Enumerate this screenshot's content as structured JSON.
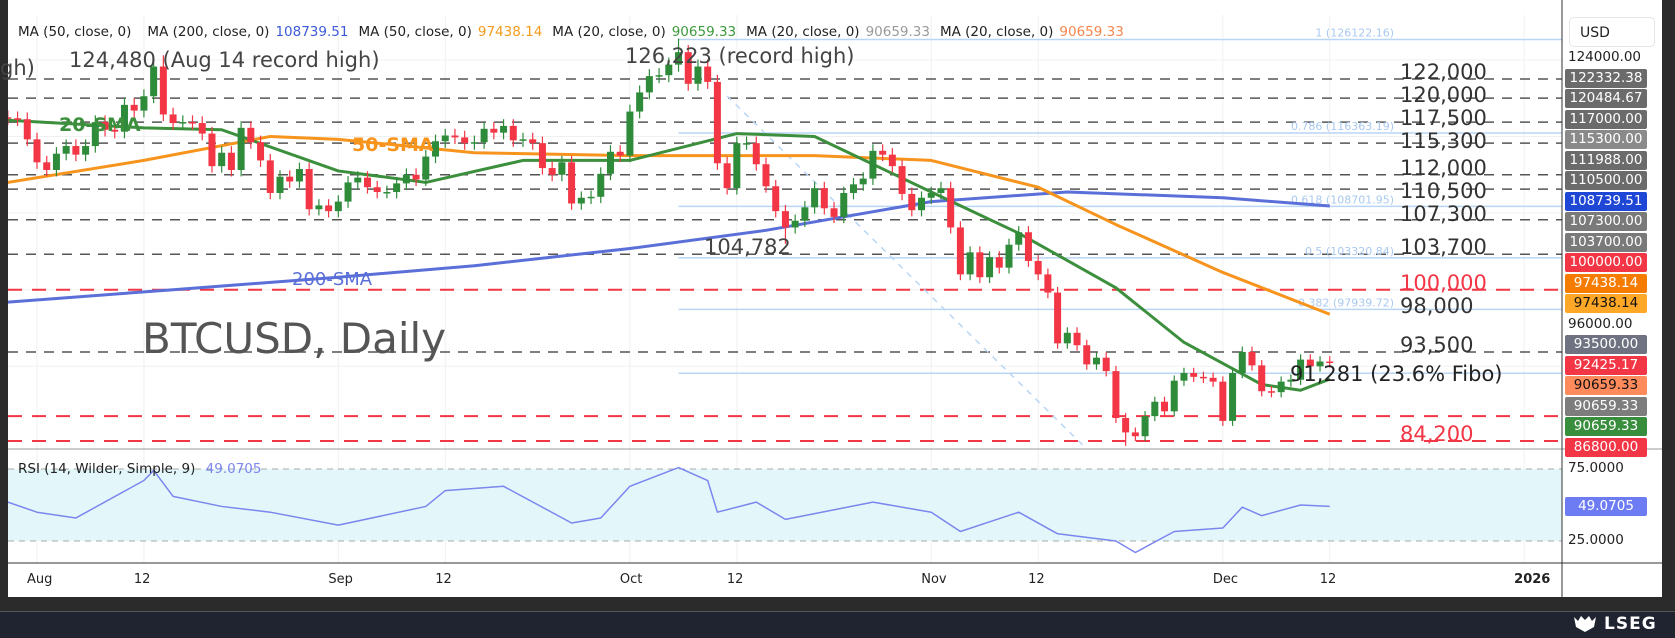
{
  "legend": [
    {
      "label": "MA (50, close, 0)",
      "value": "",
      "color": "#222222"
    },
    {
      "label": "MA (200, close, 0)",
      "value": "108739.51",
      "color": "#3d5bd9"
    },
    {
      "label": "MA (50, close, 0)",
      "value": "97438.14",
      "color": "#f59b1c"
    },
    {
      "label": "MA (20, close, 0)",
      "value": "90659.33",
      "color": "#3c9a3c"
    },
    {
      "label": "MA (20, close, 0)",
      "value": "90659.33",
      "color": "#9a9a9a"
    },
    {
      "label": "MA (20, close, 0)",
      "value": "90659.33",
      "color": "#f5874f"
    }
  ],
  "annotations": {
    "title": "BTCUSD, Daily",
    "aug_high": "124,480 (Aug 14 record high)",
    "oct_high": "126,223 (record high)",
    "cut_label": "gh)",
    "oct_low": "104,782",
    "fibo_label": "91,281 (23.6% Fibo)",
    "sma20": "20-SMA",
    "sma50": "50-SMA",
    "sma200": "200-SMA"
  },
  "currency": "USD",
  "watermark": "LSEG",
  "rsi_legend": {
    "label": "RSI (14, Wilder, Simple, 9)",
    "value": "49.0705"
  },
  "colors": {
    "up": "#2e8b3a",
    "down": "#f23645",
    "sma20": "#3c8f3c",
    "sma50": "#f7941d",
    "sma200": "#5b6fd8",
    "rsi": "#7b86ee",
    "fib": "#b9d6f5",
    "level": "#555555",
    "level_red": "#f23645",
    "rsi_band": "#e3f7fa"
  },
  "chart_data": {
    "type": "candlestick",
    "symbol": "BTCUSD",
    "timeframe": "Daily",
    "ylim": [
      82000,
      127500
    ],
    "candles": [
      [
        "2025-07-29",
        117900
      ],
      [
        "2025-07-30",
        117800
      ],
      [
        "2025-07-31",
        115700
      ],
      [
        "2025-08-01",
        113300
      ],
      [
        "2025-08-02",
        112500
      ],
      [
        "2025-08-03",
        114200
      ],
      [
        "2025-08-04",
        115000
      ],
      [
        "2025-08-05",
        114100
      ],
      [
        "2025-08-06",
        115000
      ],
      [
        "2025-08-07",
        117500
      ],
      [
        "2025-08-08",
        116700
      ],
      [
        "2025-08-09",
        116500
      ],
      [
        "2025-08-10",
        119300
      ],
      [
        "2025-08-11",
        118700
      ],
      [
        "2025-08-12",
        120200
      ],
      [
        "2025-08-13",
        123300
      ],
      [
        "2025-08-14",
        118300
      ],
      [
        "2025-08-15",
        117400
      ],
      [
        "2025-08-16",
        117500
      ],
      [
        "2025-08-17",
        117400
      ],
      [
        "2025-08-18",
        116300
      ],
      [
        "2025-08-19",
        112900
      ],
      [
        "2025-08-20",
        114300
      ],
      [
        "2025-08-21",
        112500
      ],
      [
        "2025-08-22",
        116900
      ],
      [
        "2025-08-23",
        115400
      ],
      [
        "2025-08-24",
        113500
      ],
      [
        "2025-08-25",
        110100
      ],
      [
        "2025-08-26",
        111800
      ],
      [
        "2025-08-27",
        111300
      ],
      [
        "2025-08-28",
        112600
      ],
      [
        "2025-08-29",
        108400
      ],
      [
        "2025-08-30",
        108800
      ],
      [
        "2025-08-31",
        108200
      ],
      [
        "2025-09-01",
        109200
      ],
      [
        "2025-09-02",
        111200
      ],
      [
        "2025-09-03",
        111700
      ],
      [
        "2025-09-04",
        110700
      ],
      [
        "2025-09-05",
        110200
      ],
      [
        "2025-09-06",
        110200
      ],
      [
        "2025-09-07",
        111100
      ],
      [
        "2025-09-08",
        112000
      ],
      [
        "2025-09-09",
        111500
      ],
      [
        "2025-09-10",
        113900
      ],
      [
        "2025-09-11",
        115500
      ],
      [
        "2025-09-12",
        116100
      ],
      [
        "2025-09-13",
        115900
      ],
      [
        "2025-09-14",
        115300
      ],
      [
        "2025-09-15",
        115400
      ],
      [
        "2025-09-16",
        116800
      ],
      [
        "2025-09-17",
        116400
      ],
      [
        "2025-09-18",
        117100
      ],
      [
        "2025-09-19",
        115600
      ],
      [
        "2025-09-20",
        115700
      ],
      [
        "2025-09-21",
        115300
      ],
      [
        "2025-09-22",
        112700
      ],
      [
        "2025-09-23",
        112000
      ],
      [
        "2025-09-24",
        113300
      ],
      [
        "2025-09-25",
        109000
      ],
      [
        "2025-09-26",
        109600
      ],
      [
        "2025-09-27",
        109700
      ],
      [
        "2025-09-28",
        112100
      ],
      [
        "2025-09-29",
        114400
      ],
      [
        "2025-09-30",
        114000
      ],
      [
        "2025-10-01",
        118600
      ],
      [
        "2025-10-02",
        120600
      ],
      [
        "2025-10-03",
        122300
      ],
      [
        "2025-10-04",
        122400
      ],
      [
        "2025-10-05",
        123500
      ],
      [
        "2025-10-06",
        124800
      ],
      [
        "2025-10-07",
        121500
      ],
      [
        "2025-10-08",
        123300
      ],
      [
        "2025-10-09",
        121700
      ],
      [
        "2025-10-10",
        113200
      ],
      [
        "2025-10-11",
        110600
      ],
      [
        "2025-10-12",
        115300
      ],
      [
        "2025-10-13",
        115300
      ],
      [
        "2025-10-14",
        113100
      ],
      [
        "2025-10-15",
        110800
      ],
      [
        "2025-10-16",
        108200
      ],
      [
        "2025-10-17",
        106500
      ],
      [
        "2025-10-18",
        107200
      ],
      [
        "2025-10-19",
        108600
      ],
      [
        "2025-10-20",
        110600
      ],
      [
        "2025-10-21",
        108500
      ],
      [
        "2025-10-22",
        107600
      ],
      [
        "2025-10-23",
        110100
      ],
      [
        "2025-10-24",
        111000
      ],
      [
        "2025-10-25",
        111600
      ],
      [
        "2025-10-26",
        114500
      ],
      [
        "2025-10-27",
        114100
      ],
      [
        "2025-10-28",
        112900
      ],
      [
        "2025-10-29",
        110000
      ],
      [
        "2025-10-30",
        108300
      ],
      [
        "2025-10-31",
        109600
      ],
      [
        "2025-11-01",
        110100
      ],
      [
        "2025-11-02",
        110600
      ],
      [
        "2025-11-03",
        106500
      ],
      [
        "2025-11-04",
        101600
      ],
      [
        "2025-11-05",
        103900
      ],
      [
        "2025-11-06",
        101300
      ],
      [
        "2025-11-07",
        103400
      ],
      [
        "2025-11-08",
        102300
      ],
      [
        "2025-11-09",
        104700
      ],
      [
        "2025-11-10",
        106000
      ],
      [
        "2025-11-11",
        103000
      ],
      [
        "2025-11-12",
        101600
      ],
      [
        "2025-11-13",
        99700
      ],
      [
        "2025-11-14",
        94400
      ],
      [
        "2025-11-15",
        95500
      ],
      [
        "2025-11-16",
        94200
      ],
      [
        "2025-11-17",
        92200
      ],
      [
        "2025-11-18",
        92900
      ],
      [
        "2025-11-19",
        91500
      ],
      [
        "2025-11-20",
        86600
      ],
      [
        "2025-11-21",
        85100
      ],
      [
        "2025-11-22",
        84700
      ],
      [
        "2025-11-23",
        86800
      ],
      [
        "2025-11-24",
        88300
      ],
      [
        "2025-11-25",
        87300
      ],
      [
        "2025-11-26",
        90500
      ],
      [
        "2025-11-27",
        91300
      ],
      [
        "2025-11-28",
        90900
      ],
      [
        "2025-11-29",
        90800
      ],
      [
        "2025-11-30",
        90400
      ],
      [
        "2025-12-01",
        86300
      ],
      [
        "2025-12-02",
        91300
      ],
      [
        "2025-12-03",
        93500
      ],
      [
        "2025-12-04",
        92100
      ],
      [
        "2025-12-05",
        89400
      ],
      [
        "2025-12-06",
        89300
      ],
      [
        "2025-12-07",
        90400
      ],
      [
        "2025-12-08",
        90600
      ],
      [
        "2025-12-09",
        92700
      ],
      [
        "2025-12-10",
        92000
      ],
      [
        "2025-12-11",
        92500
      ],
      [
        "2025-12-12",
        92425.17
      ]
    ],
    "extremes": {
      "2025-08-14": {
        "high": 124480
      },
      "2025-10-06": {
        "high": 126223
      },
      "2025-10-17": {
        "low": 104782
      },
      "2025-11-21": {
        "low": 83700
      }
    },
    "sma20": [
      [
        "2025-07-29",
        117700
      ],
      [
        "2025-08-12",
        116900
      ],
      [
        "2025-08-20",
        116700
      ],
      [
        "2025-09-01",
        112400
      ],
      [
        "2025-09-10",
        111200
      ],
      [
        "2025-09-20",
        113500
      ],
      [
        "2025-10-01",
        113500
      ],
      [
        "2025-10-12",
        116300
      ],
      [
        "2025-10-20",
        116000
      ],
      [
        "2025-11-01",
        110200
      ],
      [
        "2025-11-10",
        105900
      ],
      [
        "2025-11-20",
        100200
      ],
      [
        "2025-11-27",
        94500
      ],
      [
        "2025-12-05",
        90100
      ],
      [
        "2025-12-09",
        89500
      ],
      [
        "2025-12-12",
        90659.33
      ]
    ],
    "sma50": [
      [
        "2025-07-29",
        111200
      ],
      [
        "2025-08-12",
        113500
      ],
      [
        "2025-08-25",
        116000
      ],
      [
        "2025-09-01",
        115700
      ],
      [
        "2025-09-15",
        114300
      ],
      [
        "2025-10-01",
        114000
      ],
      [
        "2025-10-20",
        114000
      ],
      [
        "2025-11-01",
        113500
      ],
      [
        "2025-11-12",
        110700
      ],
      [
        "2025-11-20",
        106800
      ],
      [
        "2025-12-01",
        101800
      ],
      [
        "2025-12-12",
        97438.14
      ]
    ],
    "sma200": [
      [
        "2025-07-29",
        98700
      ],
      [
        "2025-08-15",
        100000
      ],
      [
        "2025-09-01",
        101300
      ],
      [
        "2025-09-15",
        102500
      ],
      [
        "2025-10-01",
        104300
      ],
      [
        "2025-10-15",
        106200
      ],
      [
        "2025-11-01",
        109200
      ],
      [
        "2025-11-15",
        110200
      ],
      [
        "2025-12-01",
        109600
      ],
      [
        "2025-12-12",
        108739.51
      ]
    ],
    "levels": [
      {
        "price": 122000,
        "label": "122,000",
        "type": "resistance"
      },
      {
        "price": 120000,
        "label": "120,000",
        "type": "resistance"
      },
      {
        "price": 117500,
        "label": "117,500",
        "type": "resistance"
      },
      {
        "price": 115300,
        "label": "115,300",
        "type": "resistance"
      },
      {
        "price": 112000,
        "label": "112,000",
        "type": "resistance"
      },
      {
        "price": 110500,
        "label": "110,500",
        "type": "resistance"
      },
      {
        "price": 107300,
        "label": "107,300",
        "type": "resistance"
      },
      {
        "price": 103700,
        "label": "103,700",
        "type": "resistance"
      },
      {
        "price": 100000,
        "label": "100,000",
        "type": "key"
      },
      {
        "price": 98000,
        "label": "98,000",
        "type": "plain"
      },
      {
        "price": 93500,
        "label": "93,500",
        "type": "resistance"
      },
      {
        "price": 86800,
        "label": "",
        "type": "key"
      },
      {
        "price": 84200,
        "label": "84,200",
        "type": "key"
      }
    ],
    "fibonacci": [
      {
        "ratio": "1",
        "price": 126122.16,
        "label": "1 (126122.16)"
      },
      {
        "ratio": "0.786",
        "price": 116363.19,
        "label": "0.786 (116363.19)"
      },
      {
        "ratio": "0.618",
        "price": 108701.95,
        "label": "0.618 (108701.95)"
      },
      {
        "ratio": "0.5",
        "price": 103320.84,
        "label": "0.5 (103320.84)"
      },
      {
        "ratio": "0.382",
        "price": 97939.72,
        "label": "0.382 (97939.72)"
      },
      {
        "ratio": "0.236",
        "price": 91281,
        "label": ""
      }
    ],
    "price_axis_tags": [
      {
        "value": "122332.38",
        "bg": "#6b6b6b",
        "fg": "#ffffff"
      },
      {
        "value": "120484.67",
        "bg": "#6b6b6b",
        "fg": "#ffffff"
      },
      {
        "value": "117000.00",
        "bg": "#6b6b6b",
        "fg": "#ffffff"
      },
      {
        "value": "115300.00",
        "bg": "#8a8a8a",
        "fg": "#ffffff"
      },
      {
        "value": "111988.00",
        "bg": "#6b6b6b",
        "fg": "#ffffff"
      },
      {
        "value": "110500.00",
        "bg": "#6b6b6b",
        "fg": "#ffffff"
      },
      {
        "value": "108739.51",
        "bg": "#1f47d6",
        "fg": "#ffffff"
      },
      {
        "value": "107300.00",
        "bg": "#7a7a7a",
        "fg": "#ffffff"
      },
      {
        "value": "103700.00",
        "bg": "#7a7a7a",
        "fg": "#ffffff"
      },
      {
        "value": "100000.00",
        "bg": "#f23645",
        "fg": "#ffffff"
      },
      {
        "value": "97438.14",
        "bg": "#f57c00",
        "fg": "#ffffff"
      },
      {
        "value": "97438.14",
        "bg": "#ffa726",
        "fg": "#111111"
      },
      {
        "value": "93500.00",
        "bg": "#6f7280",
        "fg": "#ffffff"
      },
      {
        "value": "92425.17",
        "bg": "#f23645",
        "fg": "#ffffff"
      },
      {
        "value": "90659.33",
        "bg": "#ff8a5c",
        "fg": "#111111"
      },
      {
        "value": "90659.33",
        "bg": "#7d7d7d",
        "fg": "#ffffff"
      },
      {
        "value": "90659.33",
        "bg": "#388e3c",
        "fg": "#ffffff"
      },
      {
        "value": "86800.00",
        "bg": "#f23645",
        "fg": "#ffffff"
      }
    ],
    "price_axis_plain": [
      "124000.00",
      "96000.00"
    ],
    "time_ticks": [
      {
        "label": "Aug",
        "date": "2025-08-01"
      },
      {
        "label": "12",
        "date": "2025-08-12"
      },
      {
        "label": "Sep",
        "date": "2025-09-01"
      },
      {
        "label": "12",
        "date": "2025-09-12"
      },
      {
        "label": "Oct",
        "date": "2025-10-01"
      },
      {
        "label": "12",
        "date": "2025-10-12"
      },
      {
        "label": "Nov",
        "date": "2025-11-01"
      },
      {
        "label": "12",
        "date": "2025-11-12"
      },
      {
        "label": "Dec",
        "date": "2025-12-01"
      },
      {
        "label": "12",
        "date": "2025-12-12"
      },
      {
        "label": "2026",
        "date": "2026-01-01"
      }
    ],
    "rsi": {
      "ylim": [
        0,
        100
      ],
      "bands": [
        25,
        75
      ],
      "axis_labels": [
        "75.0000",
        "25.0000"
      ],
      "last": "49.0705",
      "values": [
        [
          "2025-07-29",
          52
        ],
        [
          "2025-08-01",
          45
        ],
        [
          "2025-08-05",
          41
        ],
        [
          "2025-08-12",
          67
        ],
        [
          "2025-08-13",
          74
        ],
        [
          "2025-08-15",
          56
        ],
        [
          "2025-08-20",
          49
        ],
        [
          "2025-08-25",
          45
        ],
        [
          "2025-09-01",
          36
        ],
        [
          "2025-09-10",
          49
        ],
        [
          "2025-09-12",
          60
        ],
        [
          "2025-09-18",
          63
        ],
        [
          "2025-09-25",
          37.5
        ],
        [
          "2025-09-28",
          41
        ],
        [
          "2025-10-01",
          63
        ],
        [
          "2025-10-06",
          76
        ],
        [
          "2025-10-09",
          67
        ],
        [
          "2025-10-10",
          45
        ],
        [
          "2025-10-14",
          52
        ],
        [
          "2025-10-17",
          40
        ],
        [
          "2025-10-26",
          52
        ],
        [
          "2025-11-01",
          45
        ],
        [
          "2025-11-04",
          31.6
        ],
        [
          "2025-11-10",
          45
        ],
        [
          "2025-11-14",
          30
        ],
        [
          "2025-11-20",
          25
        ],
        [
          "2025-11-22",
          17
        ],
        [
          "2025-11-26",
          31.6
        ],
        [
          "2025-12-01",
          34
        ],
        [
          "2025-12-03",
          48.5
        ],
        [
          "2025-12-05",
          42.6
        ],
        [
          "2025-12-09",
          50
        ],
        [
          "2025-12-12",
          49.07
        ]
      ]
    }
  }
}
